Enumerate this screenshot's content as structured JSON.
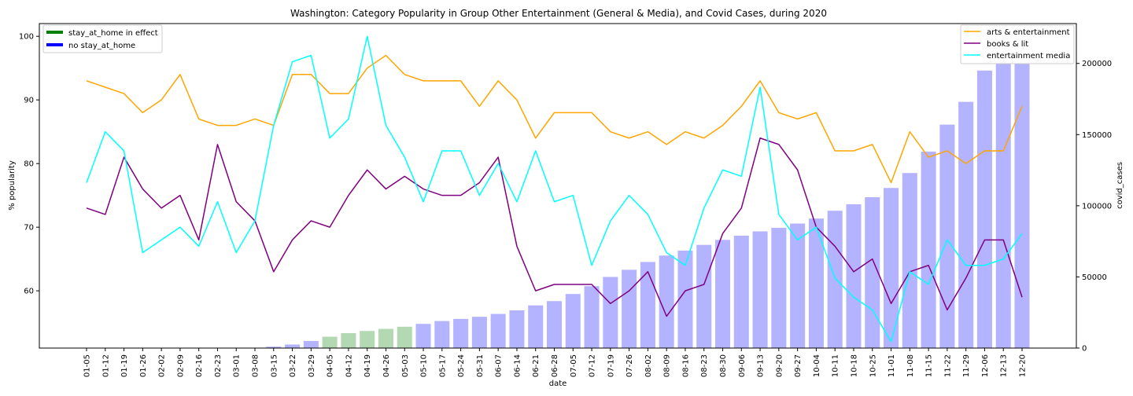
{
  "chart_data": {
    "type": "bar",
    "title": "Washington: Category Popularity in Group Other Entertainment (General & Media), and Covid Cases, during 2020",
    "xlabel": "date",
    "ylabel": "% popularity",
    "y2label": "covid_cases",
    "ylim": [
      51,
      102
    ],
    "y2lim": [
      0,
      228000
    ],
    "yticks": [
      "60",
      "70",
      "80",
      "90",
      "100"
    ],
    "y2ticks": [
      "0",
      "50000",
      "100000",
      "150000",
      "200000"
    ],
    "grid": false,
    "categories": [
      "01-05",
      "01-12",
      "01-19",
      "01-26",
      "02-02",
      "02-09",
      "02-16",
      "02-23",
      "03-01",
      "03-08",
      "03-15",
      "03-22",
      "03-29",
      "04-05",
      "04-12",
      "04-19",
      "04-26",
      "05-03",
      "05-10",
      "05-17",
      "05-24",
      "05-31",
      "06-07",
      "06-14",
      "06-21",
      "06-28",
      "07-05",
      "07-12",
      "07-19",
      "07-26",
      "08-02",
      "08-09",
      "08-16",
      "08-23",
      "08-30",
      "09-06",
      "09-13",
      "09-20",
      "09-27",
      "10-04",
      "10-11",
      "10-18",
      "10-25",
      "11-01",
      "11-08",
      "11-15",
      "11-22",
      "11-29",
      "12-06",
      "12-13",
      "12-20"
    ],
    "bars": {
      "axis": "right",
      "name": "covid_cases",
      "values": [
        0,
        0,
        0,
        0,
        0,
        0,
        0,
        0,
        0,
        0,
        1000,
        2500,
        5000,
        8000,
        10500,
        12000,
        13500,
        15000,
        17000,
        19000,
        20500,
        22000,
        24000,
        26500,
        30000,
        33000,
        38000,
        43500,
        50000,
        55000,
        60500,
        65000,
        68500,
        72500,
        76000,
        79000,
        82000,
        84500,
        87500,
        91000,
        96500,
        101000,
        106000,
        112500,
        123000,
        138000,
        157000,
        173000,
        195000,
        212000,
        222000
      ],
      "colors": {
        "stay_at_home": "#b3d9b3",
        "no_stay_at_home": "#b3b3ff"
      },
      "stay_at_home_range": [
        13,
        17
      ]
    },
    "series": [
      {
        "name": "arts & entertainment",
        "color": "#ffa500",
        "values": [
          93,
          92,
          91,
          88,
          90,
          94,
          87,
          86,
          86,
          87,
          86,
          94,
          94,
          91,
          91,
          95,
          97,
          94,
          93,
          93,
          93,
          89,
          93,
          90,
          84,
          88,
          88,
          88,
          85,
          84,
          85,
          83,
          85,
          84,
          86,
          89,
          93,
          88,
          87,
          88,
          82,
          82,
          83,
          77,
          85,
          81,
          82,
          80,
          82,
          82,
          89
        ]
      },
      {
        "name": "books & lit",
        "color": "#800080",
        "values": [
          73,
          72,
          81,
          76,
          73,
          75,
          68,
          83,
          74,
          71,
          63,
          68,
          71,
          70,
          75,
          79,
          76,
          78,
          76,
          75,
          75,
          77,
          81,
          67,
          60,
          61,
          61,
          61,
          58,
          60,
          63,
          56,
          60,
          61,
          69,
          73,
          84,
          83,
          79,
          70,
          67,
          63,
          65,
          58,
          63,
          64,
          57,
          62,
          68,
          68,
          59
        ]
      },
      {
        "name": "entertainment media",
        "color": "#00ffff",
        "values": [
          77,
          85,
          82,
          66,
          68,
          70,
          67,
          74,
          66,
          71,
          86,
          96,
          97,
          84,
          87,
          100,
          86,
          81,
          74,
          82,
          82,
          75,
          80,
          74,
          82,
          74,
          75,
          64,
          71,
          75,
          72,
          66,
          64,
          73,
          79,
          78,
          92,
          72,
          68,
          70,
          62,
          59,
          57,
          52,
          63,
          61,
          68,
          64,
          64,
          65,
          69
        ]
      }
    ],
    "legend_right": {
      "placement": "top-right",
      "entries": [
        "arts & entertainment",
        "books & lit",
        "entertainment media"
      ]
    },
    "legend_left": {
      "placement": "top-left",
      "entries": [
        {
          "label": "stay_at_home in effect",
          "color": "#008000"
        },
        {
          "label": "no stay_at_home",
          "color": "#0000ff"
        }
      ]
    }
  }
}
